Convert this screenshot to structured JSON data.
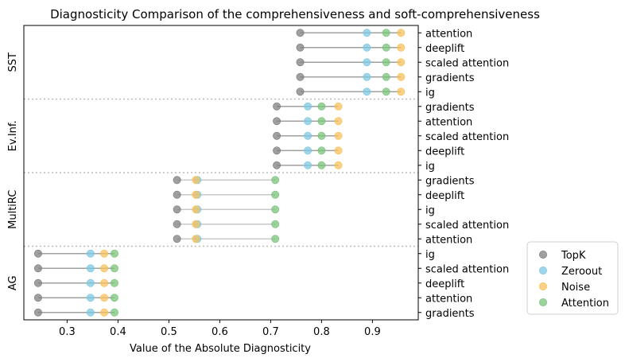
{
  "chart_data": {
    "type": "scatter",
    "title": "Diagnosticity Comparison of the comprehensiveness and soft-comprehensiveness",
    "xlabel": "Value of the Absolute Diagnosticity",
    "xlim": [
      0.215,
      0.99
    ],
    "xticks": [
      "0.3",
      "0.4",
      "0.5",
      "0.6",
      "0.7",
      "0.8",
      "0.9"
    ],
    "grid": false,
    "legend_position": "lower-right-outside",
    "series": [
      {
        "name": "TopK",
        "color": "#808080"
      },
      {
        "name": "Zeroout",
        "color": "#7ec8e3"
      },
      {
        "name": "Noise",
        "color": "#f8c15c"
      },
      {
        "name": "Attention",
        "color": "#7bc47b"
      }
    ],
    "groups": [
      {
        "name": "SST",
        "rows": [
          {
            "label": "attention",
            "topk": 0.758,
            "zeroout": 0.889,
            "noise": 0.956,
            "attention": 0.927
          },
          {
            "label": "deeplift",
            "topk": 0.758,
            "zeroout": 0.889,
            "noise": 0.956,
            "attention": 0.927
          },
          {
            "label": "scaled attention",
            "topk": 0.758,
            "zeroout": 0.889,
            "noise": 0.956,
            "attention": 0.927
          },
          {
            "label": "gradients",
            "topk": 0.758,
            "zeroout": 0.889,
            "noise": 0.956,
            "attention": 0.927
          },
          {
            "label": "ig",
            "topk": 0.758,
            "zeroout": 0.889,
            "noise": 0.956,
            "attention": 0.927
          }
        ]
      },
      {
        "name": "Ev.Inf.",
        "rows": [
          {
            "label": "gradients",
            "topk": 0.712,
            "zeroout": 0.773,
            "noise": 0.833,
            "attention": 0.8
          },
          {
            "label": "attention",
            "topk": 0.712,
            "zeroout": 0.773,
            "noise": 0.833,
            "attention": 0.8
          },
          {
            "label": "scaled attention",
            "topk": 0.712,
            "zeroout": 0.773,
            "noise": 0.833,
            "attention": 0.8
          },
          {
            "label": "deeplift",
            "topk": 0.712,
            "zeroout": 0.773,
            "noise": 0.833,
            "attention": 0.8
          },
          {
            "label": "ig",
            "topk": 0.712,
            "zeroout": 0.773,
            "noise": 0.833,
            "attention": 0.8
          }
        ]
      },
      {
        "name": "MultiRC",
        "rows": [
          {
            "label": "gradients",
            "topk": 0.516,
            "zeroout": 0.556,
            "noise": 0.553,
            "attention": 0.709
          },
          {
            "label": "deeplift",
            "topk": 0.516,
            "zeroout": 0.556,
            "noise": 0.553,
            "attention": 0.709
          },
          {
            "label": "ig",
            "topk": 0.516,
            "zeroout": 0.556,
            "noise": 0.553,
            "attention": 0.709
          },
          {
            "label": "scaled attention",
            "topk": 0.516,
            "zeroout": 0.556,
            "noise": 0.553,
            "attention": 0.709
          },
          {
            "label": "attention",
            "topk": 0.516,
            "zeroout": 0.556,
            "noise": 0.553,
            "attention": 0.709
          }
        ]
      },
      {
        "name": "AG",
        "rows": [
          {
            "label": "ig",
            "topk": 0.243,
            "zeroout": 0.346,
            "noise": 0.373,
            "attention": 0.393
          },
          {
            "label": "scaled attention",
            "topk": 0.243,
            "zeroout": 0.346,
            "noise": 0.373,
            "attention": 0.393
          },
          {
            "label": "deeplift",
            "topk": 0.243,
            "zeroout": 0.346,
            "noise": 0.373,
            "attention": 0.393
          },
          {
            "label": "attention",
            "topk": 0.243,
            "zeroout": 0.346,
            "noise": 0.373,
            "attention": 0.393
          },
          {
            "label": "gradients",
            "topk": 0.243,
            "zeroout": 0.346,
            "noise": 0.373,
            "attention": 0.393
          }
        ]
      }
    ]
  }
}
